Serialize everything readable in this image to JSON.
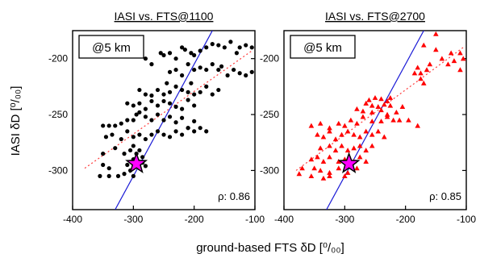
{
  "figure": {
    "ylabel": "IASI δD [⁰/₀₀]",
    "xlabel": "ground-based FTS δD [⁰/₀₀]"
  },
  "chart_data": [
    {
      "type": "scatter",
      "title": "IASI vs. FTS@1100",
      "annotation": "@5 km",
      "correlation_label": "ρ: 0.86",
      "xlim": [
        -400,
        -100
      ],
      "ylim": [
        -335,
        -175
      ],
      "xticks": [
        -400,
        -300,
        -200,
        -100
      ],
      "yticks": [
        -300,
        -250,
        -200
      ],
      "marker": "circle",
      "marker_color": "#000000",
      "fit_color": "#ff3b3b",
      "one_to_one_color": "#1a1ad6",
      "star": {
        "x": -295,
        "y": -294,
        "color": "#ff00ff"
      },
      "fit": {
        "x": [
          -380,
          -105
        ],
        "y": [
          -298,
          -193
        ]
      },
      "one_to_one": {
        "x": [
          -330,
          -165
        ],
        "y": [
          -335,
          -170
        ]
      },
      "points": [
        [
          -280,
          -200
        ],
        [
          -270,
          -205
        ],
        [
          -255,
          -195
        ],
        [
          -250,
          -197
        ],
        [
          -240,
          -195
        ],
        [
          -230,
          -200
        ],
        [
          -220,
          -190
        ],
        [
          -215,
          -192
        ],
        [
          -205,
          -195
        ],
        [
          -200,
          -197
        ],
        [
          -190,
          -193
        ],
        [
          -180,
          -190
        ],
        [
          -170,
          -187
        ],
        [
          -160,
          -188
        ],
        [
          -150,
          -190
        ],
        [
          -140,
          -185
        ],
        [
          -130,
          -195
        ],
        [
          -125,
          -190
        ],
        [
          -115,
          -188
        ],
        [
          -105,
          -190
        ],
        [
          -240,
          -212
        ],
        [
          -230,
          -210
        ],
        [
          -220,
          -215
        ],
        [
          -210,
          -205
        ],
        [
          -200,
          -210
        ],
        [
          -190,
          -208
        ],
        [
          -180,
          -210
        ],
        [
          -170,
          -205
        ],
        [
          -160,
          -210
        ],
        [
          -155,
          -207
        ],
        [
          -145,
          -215
        ],
        [
          -135,
          -210
        ],
        [
          -125,
          -213
        ],
        [
          -115,
          -215
        ],
        [
          -105,
          -212
        ],
        [
          -290,
          -228
        ],
        [
          -280,
          -232
        ],
        [
          -270,
          -233
        ],
        [
          -260,
          -228
        ],
        [
          -250,
          -232
        ],
        [
          -245,
          -222
        ],
        [
          -240,
          -230
        ],
        [
          -230,
          -225
        ],
        [
          -220,
          -228
        ],
        [
          -210,
          -230
        ],
        [
          -205,
          -222
        ],
        [
          -200,
          -232
        ],
        [
          -190,
          -230
        ],
        [
          -180,
          -225
        ],
        [
          -170,
          -232
        ],
        [
          -160,
          -228
        ],
        [
          -310,
          -240
        ],
        [
          -300,
          -242
        ],
        [
          -290,
          -240
        ],
        [
          -280,
          -245
        ],
        [
          -270,
          -238
        ],
        [
          -260,
          -242
        ],
        [
          -250,
          -238
        ],
        [
          -240,
          -240
        ],
        [
          -230,
          -243
        ],
        [
          -220,
          -245
        ],
        [
          -210,
          -237
        ],
        [
          -200,
          -242
        ],
        [
          -350,
          -260
        ],
        [
          -340,
          -260
        ],
        [
          -330,
          -260
        ],
        [
          -320,
          -258
        ],
        [
          -310,
          -255
        ],
        [
          -300,
          -255
        ],
        [
          -295,
          -250
        ],
        [
          -290,
          -248
        ],
        [
          -280,
          -252
        ],
        [
          -270,
          -255
        ],
        [
          -260,
          -250
        ],
        [
          -250,
          -255
        ],
        [
          -240,
          -252
        ],
        [
          -230,
          -257
        ],
        [
          -220,
          -253
        ],
        [
          -210,
          -262
        ],
        [
          -200,
          -256
        ],
        [
          -190,
          -262
        ],
        [
          -180,
          -265
        ],
        [
          -345,
          -270
        ],
        [
          -335,
          -268
        ],
        [
          -320,
          -272
        ],
        [
          -310,
          -265
        ],
        [
          -300,
          -270
        ],
        [
          -290,
          -268
        ],
        [
          -280,
          -272
        ],
        [
          -270,
          -268
        ],
        [
          -260,
          -265
        ],
        [
          -250,
          -268
        ],
        [
          -240,
          -270
        ],
        [
          -230,
          -265
        ],
        [
          -220,
          -268
        ],
        [
          -210,
          -262
        ],
        [
          -200,
          -265
        ],
        [
          -350,
          -285
        ],
        [
          -330,
          -280
        ],
        [
          -315,
          -285
        ],
        [
          -305,
          -282
        ],
        [
          -300,
          -278
        ],
        [
          -295,
          -285
        ],
        [
          -290,
          -282
        ],
        [
          -285,
          -288
        ],
        [
          -300,
          -290
        ],
        [
          -350,
          -295
        ],
        [
          -340,
          -298
        ],
        [
          -310,
          -295
        ],
        [
          -305,
          -300
        ],
        [
          -290,
          -298
        ],
        [
          -285,
          -293
        ],
        [
          -280,
          -296
        ],
        [
          -355,
          -305
        ],
        [
          -340,
          -305
        ],
        [
          -325,
          -305
        ],
        [
          -315,
          -303
        ],
        [
          -300,
          -305
        ]
      ]
    },
    {
      "type": "scatter",
      "title": "IASI vs. FTS@2700",
      "annotation": "@5 km",
      "correlation_label": "ρ: 0.85",
      "xlim": [
        -400,
        -100
      ],
      "ylim": [
        -335,
        -175
      ],
      "xticks": [
        -400,
        -300,
        -200,
        -100
      ],
      "yticks": [
        -300,
        -250,
        -200
      ],
      "marker": "triangle",
      "marker_color": "#ff0000",
      "fit_color": "#ff3b3b",
      "one_to_one_color": "#1a1ad6",
      "star": {
        "x": -293,
        "y": -294,
        "color": "#ff00ff"
      },
      "fit": {
        "x": [
          -380,
          -105
        ],
        "y": [
          -300,
          -190
        ]
      },
      "one_to_one": {
        "x": [
          -330,
          -165
        ],
        "y": [
          -335,
          -170
        ]
      },
      "points": [
        [
          -150,
          -178
        ],
        [
          -170,
          -188
        ],
        [
          -150,
          -192
        ],
        [
          -125,
          -195
        ],
        [
          -110,
          -195
        ],
        [
          -140,
          -200
        ],
        [
          -120,
          -202
        ],
        [
          -105,
          -200
        ],
        [
          -130,
          -205
        ],
        [
          -110,
          -210
        ],
        [
          -180,
          -208
        ],
        [
          -185,
          -213
        ],
        [
          -175,
          -213
        ],
        [
          -165,
          -210
        ],
        [
          -160,
          -205
        ],
        [
          -175,
          -218
        ],
        [
          -170,
          -222
        ],
        [
          -260,
          -237
        ],
        [
          -250,
          -235
        ],
        [
          -240,
          -236
        ],
        [
          -230,
          -238
        ],
        [
          -225,
          -235
        ],
        [
          -265,
          -240
        ],
        [
          -255,
          -242
        ],
        [
          -245,
          -243
        ],
        [
          -235,
          -241
        ],
        [
          -225,
          -242
        ],
        [
          -205,
          -243
        ],
        [
          -280,
          -245
        ],
        [
          -270,
          -247
        ],
        [
          -255,
          -248
        ],
        [
          -240,
          -246
        ],
        [
          -230,
          -250
        ],
        [
          -215,
          -248
        ],
        [
          -355,
          -260
        ],
        [
          -340,
          -258
        ],
        [
          -325,
          -262
        ],
        [
          -310,
          -258
        ],
        [
          -300,
          -260
        ],
        [
          -290,
          -255
        ],
        [
          -280,
          -258
        ],
        [
          -270,
          -252
        ],
        [
          -255,
          -256
        ],
        [
          -240,
          -256
        ],
        [
          -230,
          -252
        ],
        [
          -220,
          -255
        ],
        [
          -210,
          -255
        ],
        [
          -195,
          -255
        ],
        [
          -180,
          -260
        ],
        [
          -345,
          -268
        ],
        [
          -335,
          -270
        ],
        [
          -325,
          -265
        ],
        [
          -315,
          -272
        ],
        [
          -305,
          -268
        ],
        [
          -295,
          -265
        ],
        [
          -285,
          -268
        ],
        [
          -275,
          -270
        ],
        [
          -265,
          -265
        ],
        [
          -255,
          -268
        ],
        [
          -245,
          -265
        ],
        [
          -235,
          -270
        ],
        [
          -340,
          -280
        ],
        [
          -325,
          -278
        ],
        [
          -315,
          -282
        ],
        [
          -305,
          -278
        ],
        [
          -295,
          -282
        ],
        [
          -285,
          -280
        ],
        [
          -275,
          -278
        ],
        [
          -265,
          -282
        ],
        [
          -255,
          -278
        ],
        [
          -355,
          -290
        ],
        [
          -345,
          -288
        ],
        [
          -335,
          -292
        ],
        [
          -325,
          -288
        ],
        [
          -310,
          -292
        ],
        [
          -300,
          -290
        ],
        [
          -285,
          -292
        ],
        [
          -275,
          -288
        ],
        [
          -265,
          -292
        ],
        [
          -370,
          -298
        ],
        [
          -350,
          -298
        ],
        [
          -340,
          -300
        ],
        [
          -325,
          -302
        ],
        [
          -310,
          -298
        ],
        [
          -295,
          -302
        ],
        [
          -280,
          -298
        ],
        [
          -375,
          -303
        ],
        [
          -355,
          -305
        ],
        [
          -335,
          -307
        ],
        [
          -325,
          -305
        ],
        [
          -300,
          -305
        ]
      ]
    }
  ]
}
